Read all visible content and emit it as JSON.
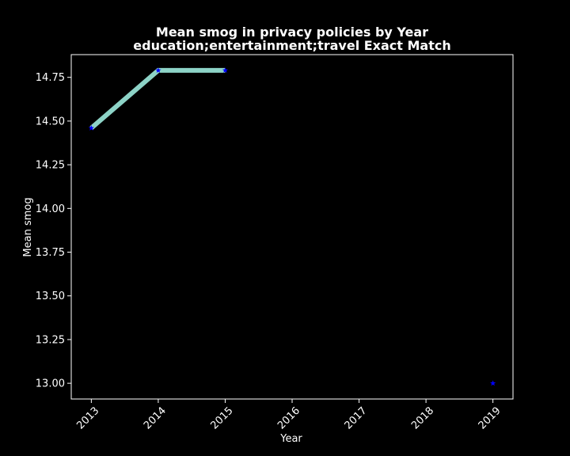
{
  "chart_data": {
    "type": "line",
    "title_line1": "Mean smog in privacy policies by Year",
    "title_line2": "education;entertainment;travel Exact Match",
    "xlabel": "Year",
    "ylabel": "Mean smog",
    "x_ticks": [
      2013,
      2014,
      2015,
      2016,
      2017,
      2018,
      2019
    ],
    "y_ticks": [
      13.0,
      13.25,
      13.5,
      13.75,
      14.0,
      14.25,
      14.5,
      14.75
    ],
    "y_tick_labels": [
      "13.00",
      "13.25",
      "13.50",
      "13.75",
      "14.00",
      "14.25",
      "14.50",
      "14.75"
    ],
    "xlim": [
      2012.7,
      2019.3
    ],
    "ylim": [
      12.91,
      14.88
    ],
    "grid": false,
    "series": [
      {
        "x": [
          2013,
          2014,
          2015,
          2019
        ],
        "y": [
          14.46,
          14.79,
          14.79,
          13.0
        ],
        "line_segments": [
          [
            0,
            1,
            2
          ]
        ],
        "line_color": "#8dd3c7",
        "marker_color": "#0000ff",
        "marker": "star"
      }
    ],
    "colors": {
      "background": "#000000",
      "axes": "#ffffff",
      "text": "#ffffff"
    }
  }
}
